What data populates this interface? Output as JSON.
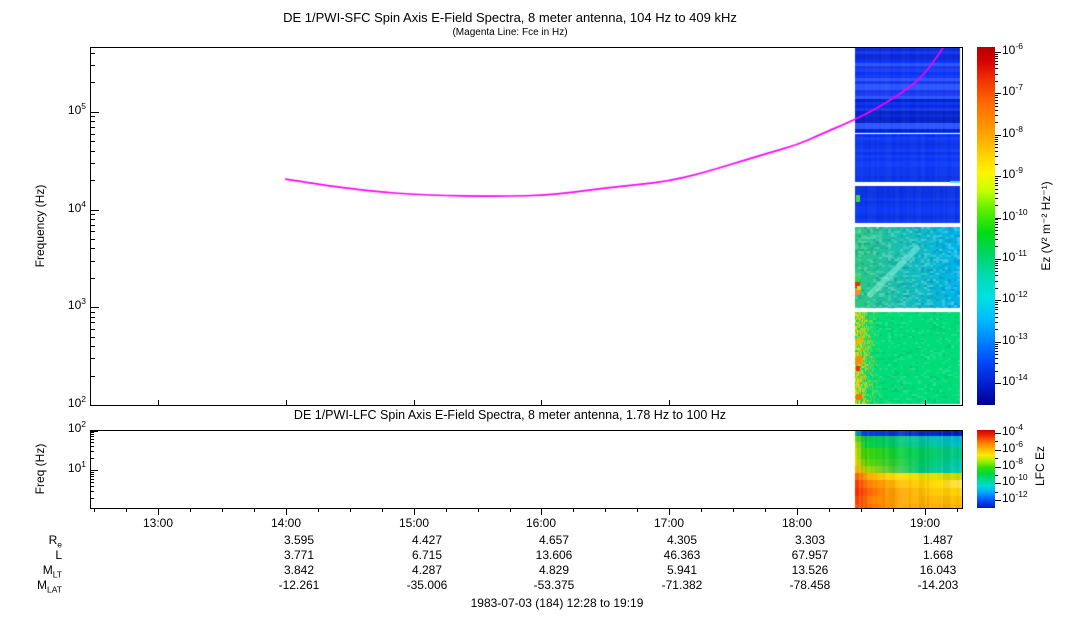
{
  "footer": {
    "date_range": "1983-07-03 (184) 12:28 to 19:19"
  },
  "chart_data": [
    {
      "type": "heatmap",
      "id": "sfc",
      "title": "DE 1/PWI-SFC  Spin Axis E-Field Spectra, 8 meter antenna, 104 Hz to 409 kHz",
      "subtitle": "(Magenta Line: Fce in Hz)",
      "ylabel": "Frequency (Hz)",
      "yscale": "log",
      "ylim": [
        100,
        461000
      ],
      "y_major_tick_exponents": [
        2,
        3,
        4,
        5
      ],
      "xlim_hours": [
        12.468,
        19.29
      ],
      "x_hours": {
        "labels": [
          "13:00",
          "14:00",
          "15:00",
          "16:00",
          "17:00",
          "18:00",
          "19:00"
        ],
        "values": [
          13,
          14,
          15,
          16,
          17,
          18,
          19
        ]
      },
      "grid": false,
      "colorbar": {
        "label": "Ez (V² m⁻² Hz⁻¹)",
        "tick_exponents": [
          -6,
          -7,
          -8,
          -9,
          -10,
          -11,
          -12,
          -13,
          -14
        ],
        "gradient": [
          [
            0,
            "#b40000"
          ],
          [
            0.04,
            "#d80000"
          ],
          [
            0.09,
            "#f03000"
          ],
          [
            0.16,
            "#ff6c00"
          ],
          [
            0.24,
            "#ffa000"
          ],
          [
            0.3,
            "#ffd000"
          ],
          [
            0.35,
            "#fff400"
          ],
          [
            0.4,
            "#c8ff00"
          ],
          [
            0.45,
            "#64f000"
          ],
          [
            0.52,
            "#00dc14"
          ],
          [
            0.58,
            "#00d464"
          ],
          [
            0.64,
            "#00dcb4"
          ],
          [
            0.7,
            "#00e0e0"
          ],
          [
            0.76,
            "#00bcff"
          ],
          [
            0.82,
            "#0084ff"
          ],
          [
            0.88,
            "#0048f8"
          ],
          [
            0.94,
            "#0020d0"
          ],
          [
            1,
            "#000090"
          ]
        ]
      },
      "fce_line": {
        "color": "#ff00ff",
        "points_hour_hz": [
          [
            14.0,
            20500
          ],
          [
            14.25,
            18200
          ],
          [
            14.5,
            16400
          ],
          [
            14.75,
            15100
          ],
          [
            15.0,
            14300
          ],
          [
            15.25,
            13900
          ],
          [
            15.5,
            13700
          ],
          [
            15.75,
            13700
          ],
          [
            16.0,
            14000
          ],
          [
            16.25,
            15000
          ],
          [
            16.5,
            16600
          ],
          [
            16.75,
            18000
          ],
          [
            17.0,
            19600
          ],
          [
            17.25,
            23500
          ],
          [
            17.5,
            29500
          ],
          [
            17.75,
            37000
          ],
          [
            18.0,
            46000
          ],
          [
            18.2,
            60000
          ],
          [
            18.45,
            83000
          ],
          [
            18.6,
            105000
          ],
          [
            18.8,
            150000
          ],
          [
            18.95,
            210000
          ],
          [
            19.05,
            300000
          ],
          [
            19.14,
            450000
          ]
        ]
      },
      "spectrogram": {
        "t_start": 18.453,
        "t_end": 19.275,
        "bands": [
          {
            "fmin": 61000,
            "fmax": 461000,
            "style": "hstripes",
            "palette": [
              "#0726d8",
              "#1a3cf0",
              "#0430fa",
              "#2a52ff",
              "#0020c4",
              "#1236ec"
            ],
            "bright": "#3a7bff"
          },
          {
            "fmin": 19000,
            "fmax": 59000,
            "style": "hstripes-subtle",
            "palette": [
              "#0a30e6",
              "#0d3cfa",
              "#0b36f0",
              "#0934ee"
            ]
          },
          {
            "fmin": 7300,
            "fmax": 17500,
            "style": "hstripes-subtle",
            "palette": [
              "#0730e2",
              "#0a38f6",
              "#0834ec"
            ]
          },
          {
            "fmin": 980,
            "fmax": 6600,
            "style": "noise-h",
            "left": "#2cc882",
            "right": "#00b4ec",
            "streak": {
              "t0": 18.56,
              "f0": 1300,
              "t1": 18.95,
              "f1": 4200,
              "color": "rgba(170,255,235,0.45)",
              "width": 6
            }
          },
          {
            "fmin": 100,
            "fmax": 890,
            "style": "noise-flat",
            "base": "#00dc78",
            "hot_left": {
              "width": 28,
              "colors": [
                "#ffe000",
                "#ffc800",
                "#ffa000",
                "#c8e800"
              ]
            }
          }
        ],
        "specks": [
          {
            "t": 18.462,
            "f": 14200,
            "w": 4,
            "h": 7,
            "color": "#38d840"
          },
          {
            "t": 19.2,
            "f": 19500,
            "w": 10,
            "h": 2,
            "color": "#55dce8"
          },
          {
            "t": 18.455,
            "f": 2100,
            "w": 5,
            "h": 6,
            "color": "#38d840"
          },
          {
            "t": 18.455,
            "f": 1800,
            "w": 5,
            "h": 6,
            "color": "#e03018"
          },
          {
            "t": 18.455,
            "f": 1500,
            "w": 5,
            "h": 5,
            "color": "#ff8820"
          },
          {
            "t": 18.47,
            "f": 1650,
            "w": 4,
            "h": 4,
            "color": "#ffd000"
          },
          {
            "t": 18.458,
            "f": 320,
            "w": 6,
            "h": 8,
            "color": "#ff8c00"
          },
          {
            "t": 18.458,
            "f": 130,
            "w": 6,
            "h": 6,
            "color": "#ff7000"
          },
          {
            "t": 18.46,
            "f": 250,
            "w": 4,
            "h": 5,
            "color": "#f03000"
          },
          {
            "t": 18.47,
            "f": 480,
            "w": 5,
            "h": 6,
            "color": "#ffb000"
          }
        ]
      }
    },
    {
      "type": "heatmap",
      "id": "lfc",
      "title": "DE 1/PWI-LFC  Spin Axis E-Field Spectra, 8 meter antenna, 1.78 Hz to 100 Hz",
      "ylabel": "Freq (Hz)",
      "yscale": "log",
      "ylim": [
        1.12,
        100
      ],
      "y_major_tick_exponents": [
        1,
        2
      ],
      "grid": false,
      "colorbar": {
        "label": "LFC Ez",
        "tick_exponents": [
          -4,
          -6,
          -8,
          -10,
          -12
        ],
        "gradient": [
          [
            0,
            "#c80000"
          ],
          [
            0.08,
            "#f03000"
          ],
          [
            0.16,
            "#ff7800"
          ],
          [
            0.24,
            "#ffb400"
          ],
          [
            0.32,
            "#ffe800"
          ],
          [
            0.4,
            "#a0f000"
          ],
          [
            0.48,
            "#30e000"
          ],
          [
            0.56,
            "#00d840"
          ],
          [
            0.64,
            "#00d890"
          ],
          [
            0.72,
            "#00d8d8"
          ],
          [
            0.8,
            "#00a8ff"
          ],
          [
            0.88,
            "#0060ff"
          ],
          [
            1,
            "#0018c0"
          ]
        ]
      },
      "spectrogram": {
        "t_start": 18.453,
        "t_end": 19.29,
        "rows": [
          {
            "h": 5,
            "stops": [
              [
                0,
                "#00c0a0"
              ],
              [
                0.08,
                "#0040e8"
              ],
              [
                1,
                "#0018b4"
              ]
            ]
          },
          {
            "h": 6,
            "stops": [
              [
                0,
                "#7cdc00"
              ],
              [
                0.1,
                "#00cc38"
              ],
              [
                0.55,
                "#00c89c"
              ],
              [
                1,
                "#00b4d4"
              ]
            ]
          },
          {
            "h": 6,
            "stops": [
              [
                0,
                "#c8dc00"
              ],
              [
                0.1,
                "#00d040"
              ],
              [
                1,
                "#00c0bc"
              ]
            ]
          },
          {
            "h": 11,
            "stops": [
              [
                0,
                "#e8dc00"
              ],
              [
                0.08,
                "#40d400"
              ],
              [
                0.5,
                "#00d048"
              ],
              [
                1,
                "#00c88c"
              ]
            ]
          },
          {
            "h": 7,
            "stops": [
              [
                0,
                "#ffd000"
              ],
              [
                0.1,
                "#60d400"
              ],
              [
                0.6,
                "#00cc60"
              ],
              [
                1,
                "#00c8ac"
              ]
            ]
          },
          {
            "h": 7,
            "stops": [
              [
                0,
                "#ffb400"
              ],
              [
                0.12,
                "#a4d400"
              ],
              [
                0.6,
                "#00c878"
              ],
              [
                1,
                "#00ccbc"
              ]
            ]
          },
          {
            "h": 7,
            "stops": [
              [
                0,
                "#ff6000"
              ],
              [
                0.12,
                "#ffa800"
              ],
              [
                0.35,
                "#ffe000"
              ],
              [
                0.75,
                "#e0e000"
              ],
              [
                1,
                "#c8d800"
              ]
            ]
          },
          {
            "h": 8,
            "stops": [
              [
                0,
                "#ff3000"
              ],
              [
                0.1,
                "#ff7800"
              ],
              [
                0.4,
                "#ffc000"
              ],
              [
                0.8,
                "#ffe000"
              ],
              [
                1,
                "#ffe458"
              ]
            ]
          },
          {
            "h": 8,
            "stops": [
              [
                0,
                "#ff2000"
              ],
              [
                0.08,
                "#ff5000"
              ],
              [
                0.3,
                "#ff9800"
              ],
              [
                0.7,
                "#ffc800"
              ],
              [
                1,
                "#ffd400"
              ]
            ]
          },
          {
            "h": 8,
            "stops": [
              [
                0,
                "#ff3800"
              ],
              [
                0.15,
                "#ff8000"
              ],
              [
                0.5,
                "#ffb000"
              ],
              [
                1,
                "#ffc000"
              ]
            ]
          },
          {
            "h": 4,
            "stops": [
              [
                0,
                "#ff5000"
              ],
              [
                0.4,
                "#ffa000"
              ],
              [
                1,
                "#ffb400"
              ]
            ]
          }
        ]
      }
    }
  ],
  "ephemeris": {
    "row_labels": [
      {
        "base": "R",
        "sub": "e"
      },
      {
        "base": "L",
        "sub": ""
      },
      {
        "base": "M",
        "sub": "LT"
      },
      {
        "base": "M",
        "sub": "LAT"
      }
    ],
    "column_hours": [
      14,
      15,
      16,
      17,
      18,
      19
    ],
    "values": [
      [
        "3.595",
        "4.427",
        "4.657",
        "4.305",
        "3.303",
        "1.487"
      ],
      [
        "3.771",
        "6.715",
        "13.606",
        "46.363",
        "67.957",
        "1.668"
      ],
      [
        "3.842",
        "4.287",
        "4.829",
        "5.941",
        "13.526",
        "16.043"
      ],
      [
        "-12.261",
        "-35.006",
        "-53.375",
        "-71.382",
        "-78.458",
        "-14.203"
      ]
    ]
  }
}
